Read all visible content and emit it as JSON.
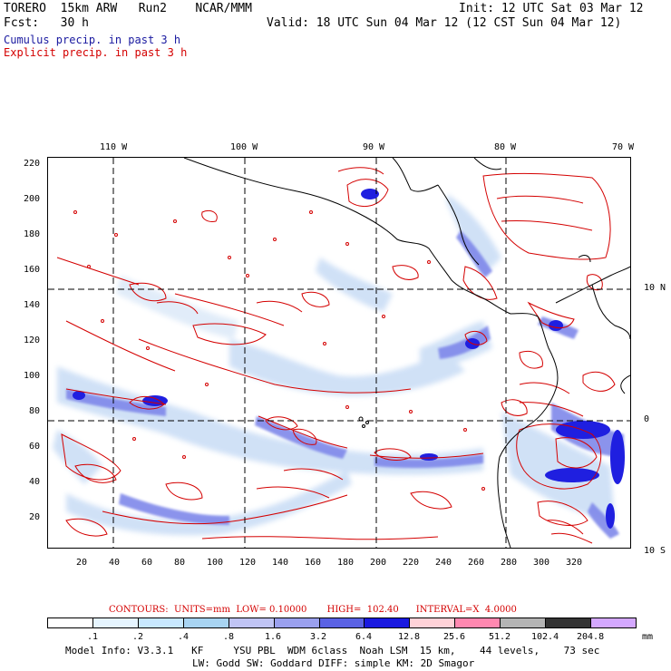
{
  "header": {
    "line1_left": "TORERO  15km ARW   Run2    NCAR/MMM",
    "line1_right": "Init: 12 UTC Sat 03 Mar 12",
    "line2_left": "Fcst:   30 h",
    "line2_right": "Valid: 18 UTC Sun 04 Mar 12 (12 CST Sun 04 Mar 12)",
    "cumulus": "Cumulus precip. in past 3 h",
    "explicit": "Explicit precip. in past 3 h"
  },
  "map": {
    "top_lon_labels": [
      "110 W",
      "100 W",
      "90 W",
      "80 W",
      "70 W"
    ],
    "left_y_labels": [
      "220",
      "200",
      "180",
      "160",
      "140",
      "120",
      "100",
      "80",
      "60",
      "40",
      "20"
    ],
    "bottom_x_labels": [
      "20",
      "40",
      "60",
      "80",
      "100",
      "120",
      "140",
      "160",
      "180",
      "200",
      "220",
      "240",
      "260",
      "280",
      "300",
      "320"
    ],
    "right_lat_labels": [
      "10 N",
      "0",
      "10 S"
    ],
    "colors": {
      "land_line": "#000000",
      "grid_line": "#000000",
      "explicit_contour": "#d40000",
      "cumulus_light": "#c8dcf5",
      "cumulus_mid": "#7f88ea",
      "cumulus_dark": "#1f1fe0"
    }
  },
  "contours_line": "CONTOURS:  UNITS=mm  LOW= 0.10000       HIGH=  102.40      INTERVAL=X  4.0000",
  "colorbar": {
    "labels": [
      ".1",
      ".2",
      ".4",
      ".8",
      "1.6",
      "3.2",
      "6.4",
      "12.8",
      "25.6",
      "51.2",
      "102.4",
      "204.8"
    ],
    "unit": "mm",
    "colors": [
      "#ffffff",
      "#e6f5ff",
      "#c8e8ff",
      "#a8d4f2",
      "#c0c4f4",
      "#9aa0ee",
      "#5a62e4",
      "#1a1ae0",
      "#ffd2d8",
      "#ff88b0",
      "#b4b4b4",
      "#333333",
      "#d4a8ff"
    ]
  },
  "footer": {
    "line1": "Model Info: V3.3.1   KF     YSU PBL  WDM 6class  Noah LSM  15 km,    44 levels,    73 sec",
    "line2": "LW: Godd SW: Goddard DIFF: simple KM: 2D Smagor"
  }
}
